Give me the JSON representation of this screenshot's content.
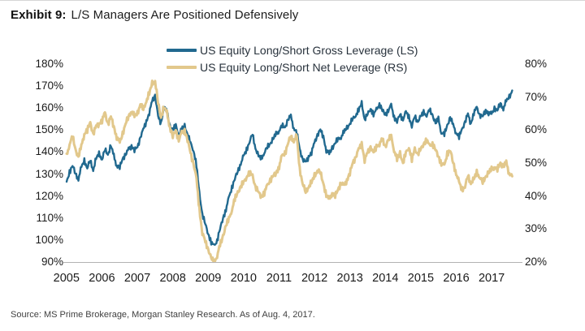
{
  "header": {
    "exhibit_label": "Exhibit 9:",
    "title": "L/S Managers Are Positioned Defensively"
  },
  "source_note": "Source: MS Prime Brokerage, Morgan Stanley Research. As of Aug. 4, 2017.",
  "colors": {
    "gross_line": "#21698f",
    "net_line": "#e2c88c",
    "axis_line": "#b3b3b3",
    "text": "#1a1a1a"
  },
  "chart_data": {
    "type": "line",
    "title": "Exhibit 9: L/S Managers Are Positioned Defensively",
    "x_unit": "monthly",
    "x_start": "2005-01",
    "x_end": "2017-08",
    "x_tick_labels": [
      "2005",
      "2006",
      "2007",
      "2008",
      "2009",
      "2010",
      "2011",
      "2012",
      "2013",
      "2014",
      "2015",
      "2016",
      "2017"
    ],
    "grid": false,
    "legend_position": "top-center",
    "left_axis": {
      "min": 90,
      "max": 180,
      "step": 10,
      "ticks": [
        "180%",
        "170%",
        "160%",
        "150%",
        "140%",
        "130%",
        "120%",
        "110%",
        "100%",
        "90%"
      ]
    },
    "right_axis": {
      "min": 20,
      "max": 80,
      "step": 10,
      "ticks": [
        "80%",
        "70%",
        "60%",
        "50%",
        "40%",
        "30%",
        "20%"
      ]
    },
    "series": [
      {
        "name": "US Equity Long/Short Gross Leverage (LS)",
        "axis": "left",
        "color": "#21698f",
        "unit": "%",
        "values": [
          126,
          131,
          134,
          130,
          128,
          133,
          136,
          133,
          136,
          132,
          137,
          139,
          137,
          141,
          139,
          143,
          138,
          134,
          133,
          137,
          139,
          141,
          143,
          141,
          142,
          147,
          150,
          154,
          158,
          163,
          166,
          156,
          153,
          161,
          158,
          152,
          150,
          152,
          148,
          150,
          152,
          148,
          144,
          141,
          134,
          121,
          112,
          107,
          103,
          99,
          97,
          100,
          105,
          110,
          114,
          119,
          124,
          128,
          131,
          135,
          138,
          141,
          145,
          148,
          142,
          138,
          137,
          140,
          142,
          144,
          146,
          148,
          150,
          152,
          151,
          155,
          156,
          151,
          149,
          141,
          137,
          135,
          138,
          140,
          144,
          148,
          150,
          147,
          141,
          139,
          142,
          144,
          146,
          147,
          149,
          151,
          153,
          155,
          157,
          159,
          162,
          155,
          157,
          160,
          157,
          159,
          162,
          159,
          157,
          159,
          161,
          156,
          154,
          157,
          155,
          158,
          156,
          152,
          156,
          154,
          156,
          158,
          157,
          159,
          157,
          153,
          155,
          149,
          148,
          152,
          156,
          152,
          149,
          147,
          150,
          154,
          157,
          153,
          158,
          160,
          157,
          156,
          159,
          158,
          157,
          160,
          159,
          162,
          160,
          163,
          165,
          168
        ]
      },
      {
        "name": "US Equity Long/Short Net Leverage (RS)",
        "axis": "right",
        "color": "#e2c88c",
        "unit": "%",
        "values": [
          52,
          56,
          58,
          54,
          52,
          55,
          59,
          60,
          62,
          59,
          61,
          62,
          63,
          65,
          62,
          64,
          61,
          58,
          56,
          59,
          62,
          64,
          66,
          64,
          65,
          68,
          66,
          69,
          71,
          74,
          75,
          68,
          64,
          67,
          65,
          61,
          58,
          60,
          57,
          59,
          60,
          57,
          53,
          50,
          45,
          36,
          29,
          26,
          24,
          21,
          20,
          22,
          25,
          28,
          31,
          33,
          36,
          39,
          41,
          43,
          44,
          46,
          47,
          46,
          43,
          41,
          40,
          41,
          43,
          45,
          46,
          47,
          49,
          52,
          53,
          56,
          58,
          57,
          58,
          48,
          44,
          41,
          43,
          44,
          46,
          48,
          47,
          44,
          40,
          39,
          41,
          40,
          42,
          44,
          43,
          45,
          47,
          50,
          52,
          54,
          56,
          51,
          53,
          55,
          53,
          55,
          56,
          57,
          55,
          57,
          58,
          54,
          51,
          53,
          50,
          53,
          55,
          51,
          54,
          53,
          54,
          56,
          57,
          55,
          56,
          54,
          52,
          50,
          49,
          53,
          54,
          50,
          47,
          44,
          42,
          43,
          46,
          44,
          45,
          47,
          46,
          44,
          46,
          47,
          48,
          49,
          48,
          50,
          49,
          50,
          47,
          46
        ]
      }
    ]
  }
}
